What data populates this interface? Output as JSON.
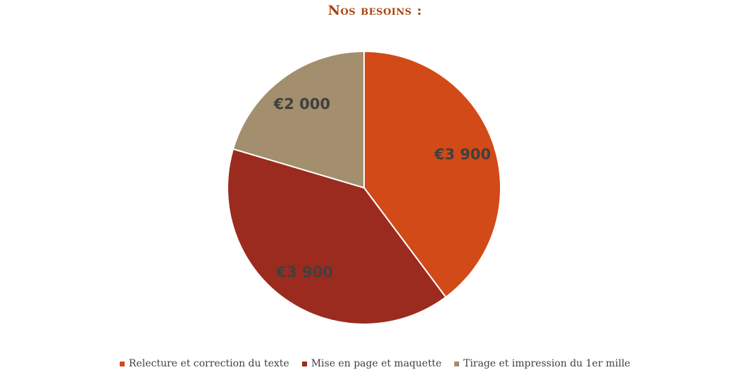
{
  "chart_data": {
    "type": "pie",
    "title": "Nos besoins :",
    "categories": [
      "Relecture et correction du texte",
      "Mise en page et maquette",
      "Tirage et impression du 1er mille"
    ],
    "values": [
      3900,
      3900,
      2000
    ],
    "data_labels": [
      "€3 900",
      "€3 900",
      "€2 000"
    ],
    "colors": [
      "#d24a17",
      "#9b2b1f",
      "#a38f6d"
    ],
    "title_color": "#a9430f",
    "legend_position": "bottom",
    "start_angle": "12 o'clock",
    "direction": "clockwise"
  }
}
